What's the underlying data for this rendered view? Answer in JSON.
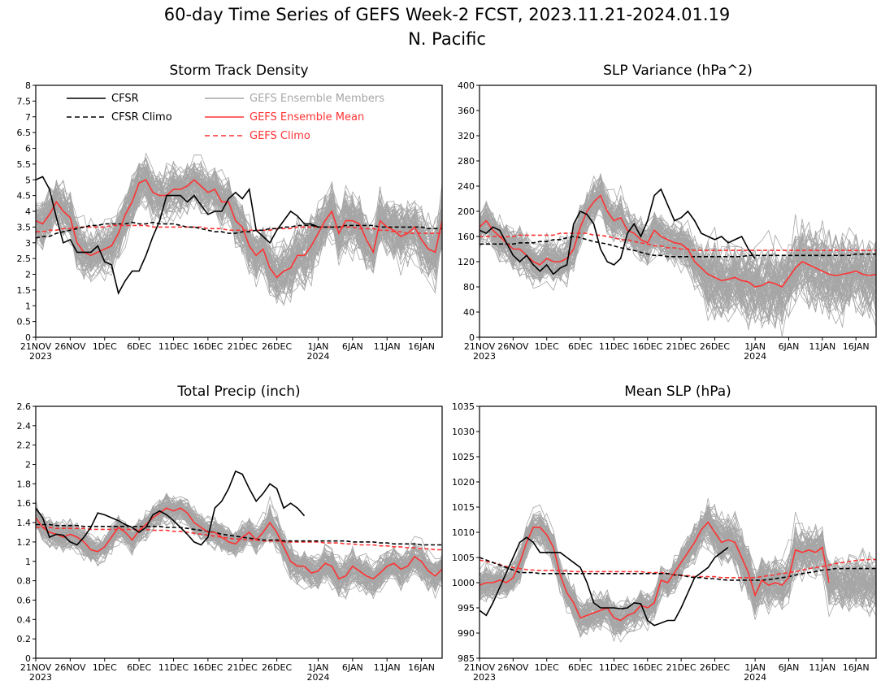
{
  "figure": {
    "title": "60-day Time Series of GEFS Week-2 FCST, 2023.11.21-2024.01.19",
    "subtitle": "N. Pacific"
  },
  "legend": {
    "cfsr": "CFSR",
    "cfsr_climo": "CFSR Climo",
    "members": "GEFS Ensemble Members",
    "mean": "GEFS Ensemble Mean",
    "gefs_climo": "GEFS Climo"
  },
  "colors": {
    "cfsr": "#000000",
    "members": "#a6a6a6",
    "mean": "#ff3333",
    "gefs_climo": "#ff3333"
  },
  "x_ticks": [
    "21NOV",
    "26NOV",
    "1DEC",
    "6DEC",
    "11DEC",
    "16DEC",
    "21DEC",
    "26DEC",
    "1JAN",
    "6JAN",
    "11JAN",
    "16JAN"
  ],
  "year_labels": [
    "2023",
    "2024"
  ],
  "chart_data": [
    {
      "type": "line",
      "title": "Storm Track Density",
      "x_start": "2023-11-21",
      "days": 60,
      "ylim": [
        0,
        8
      ],
      "yticks": [
        "0",
        "0.5",
        "1",
        "1.5",
        "2",
        "2.5",
        "3",
        "3.5",
        "4",
        "4.5",
        "5",
        "5.5",
        "6",
        "6.5",
        "7",
        "7.5",
        "8"
      ],
      "members_spread": [
        1.4,
        1.7
      ],
      "series": [
        {
          "name": "CFSR",
          "values": [
            5.0,
            5.1,
            4.7,
            3.8,
            3.0,
            3.1,
            2.7,
            2.7,
            2.7,
            2.9,
            2.4,
            2.3,
            1.4,
            1.8,
            2.1,
            2.1,
            2.6,
            3.2,
            3.7,
            4.5,
            4.5,
            4.5,
            4.3,
            4.5,
            4.2,
            3.9,
            4.0,
            4.0,
            4.4,
            4.6,
            4.4,
            4.7,
            3.4,
            3.2,
            3.0,
            3.4,
            3.7,
            4.0,
            3.85,
            3.6,
            3.6,
            3.5
          ]
        },
        {
          "name": "CFSR Climo",
          "values": [
            3.15,
            3.2,
            3.2,
            3.3,
            3.35,
            3.4,
            3.45,
            3.5,
            3.55,
            3.55,
            3.6,
            3.6,
            3.6,
            3.6,
            3.65,
            3.6,
            3.6,
            3.65,
            3.6,
            3.6,
            3.6,
            3.55,
            3.5,
            3.5,
            3.45,
            3.4,
            3.35,
            3.35,
            3.3,
            3.3,
            3.35,
            3.35,
            3.4,
            3.4,
            3.45,
            3.45,
            3.5,
            3.5,
            3.55,
            3.55,
            3.55,
            3.5,
            3.5,
            3.5,
            3.5,
            3.55,
            3.55,
            3.55,
            3.55,
            3.55,
            3.5,
            3.5,
            3.5,
            3.5,
            3.5,
            3.5,
            3.5,
            3.45,
            3.45,
            3.45
          ]
        },
        {
          "name": "GEFS Ensemble Mean",
          "values": [
            3.7,
            3.6,
            3.9,
            4.3,
            4.0,
            3.8,
            3.0,
            2.7,
            2.6,
            2.7,
            2.8,
            2.9,
            3.3,
            3.9,
            4.3,
            4.9,
            5.0,
            4.6,
            4.5,
            4.5,
            4.7,
            4.7,
            4.8,
            5.0,
            4.8,
            4.6,
            4.7,
            4.3,
            4.3,
            3.7,
            3.5,
            2.9,
            2.6,
            2.8,
            2.2,
            1.9,
            2.1,
            2.2,
            2.6,
            2.6,
            2.9,
            3.3,
            3.7,
            4.0,
            3.3,
            3.7,
            3.7,
            3.6,
            3.1,
            2.7,
            3.7,
            3.5,
            3.4,
            3.2,
            3.3,
            3.5,
            3.1,
            2.8,
            2.7,
            3.7
          ]
        },
        {
          "name": "GEFS Climo",
          "values": [
            3.35,
            3.35,
            3.4,
            3.4,
            3.45,
            3.45,
            3.5,
            3.5,
            3.5,
            3.5,
            3.5,
            3.55,
            3.55,
            3.55,
            3.55,
            3.55,
            3.55,
            3.5,
            3.5,
            3.5,
            3.5,
            3.5,
            3.5,
            3.5,
            3.5,
            3.45,
            3.45,
            3.45,
            3.4,
            3.4,
            3.4,
            3.4,
            3.4,
            3.4,
            3.4,
            3.45,
            3.45,
            3.45,
            3.5,
            3.5,
            3.5,
            3.5,
            3.5,
            3.5,
            3.5,
            3.5,
            3.5,
            3.45,
            3.45,
            3.45,
            3.4,
            3.4,
            3.35,
            3.35,
            3.3,
            3.3,
            3.3,
            3.3,
            3.3,
            3.3
          ]
        }
      ]
    },
    {
      "type": "line",
      "title": "SLP Variance (hPa^2)",
      "x_start": "2023-11-21",
      "days": 60,
      "ylim": [
        0,
        400
      ],
      "yticks": [
        "0",
        "40",
        "80",
        "120",
        "160",
        "200",
        "240",
        "280",
        "320",
        "360",
        "400"
      ],
      "members_spread": [
        60,
        110
      ],
      "series": [
        {
          "name": "CFSR",
          "values": [
            170,
            165,
            175,
            170,
            150,
            130,
            120,
            130,
            115,
            105,
            115,
            100,
            110,
            115,
            180,
            200,
            195,
            180,
            140,
            120,
            115,
            125,
            165,
            180,
            160,
            185,
            225,
            235,
            210,
            185,
            190,
            200,
            185,
            165,
            160,
            155,
            160,
            150,
            155,
            160,
            140,
            125
          ]
        },
        {
          "name": "CFSR Climo",
          "values": [
            148,
            148,
            148,
            148,
            148,
            148,
            150,
            150,
            150,
            152,
            152,
            155,
            155,
            158,
            160,
            158,
            155,
            152,
            150,
            148,
            145,
            142,
            140,
            138,
            135,
            132,
            130,
            130,
            128,
            128,
            128,
            128,
            128,
            128,
            128,
            128,
            128,
            128,
            128,
            128,
            130,
            130,
            130,
            130,
            130,
            130,
            130,
            130,
            130,
            130,
            130,
            130,
            130,
            130,
            130,
            130,
            132,
            132,
            132,
            132
          ]
        },
        {
          "name": "GEFS Ensemble Mean",
          "values": [
            175,
            185,
            170,
            160,
            150,
            140,
            140,
            130,
            120,
            115,
            125,
            120,
            120,
            125,
            140,
            175,
            200,
            215,
            225,
            200,
            185,
            190,
            170,
            165,
            155,
            150,
            170,
            160,
            155,
            150,
            148,
            140,
            120,
            110,
            100,
            95,
            90,
            92,
            95,
            90,
            88,
            80,
            82,
            88,
            85,
            80,
            95,
            110,
            120,
            115,
            110,
            105,
            100,
            98,
            100,
            102,
            105,
            100,
            98,
            100
          ]
        },
        {
          "name": "GEFS Climo",
          "values": [
            160,
            160,
            160,
            160,
            160,
            160,
            162,
            162,
            162,
            162,
            162,
            162,
            165,
            165,
            165,
            165,
            165,
            162,
            162,
            160,
            158,
            155,
            155,
            152,
            150,
            148,
            145,
            145,
            142,
            142,
            140,
            140,
            138,
            138,
            138,
            138,
            138,
            138,
            138,
            138,
            138,
            138,
            138,
            138,
            138,
            138,
            138,
            138,
            138,
            138,
            138,
            138,
            138,
            138,
            138,
            138,
            138,
            138,
            138,
            138
          ]
        }
      ]
    },
    {
      "type": "line",
      "title": "Total Precip (inch)",
      "x_start": "2023-11-21",
      "days": 60,
      "ylim": [
        0,
        2.6
      ],
      "yticks": [
        "0",
        "0.2",
        "0.4",
        "0.6",
        "0.8",
        "1",
        "1.2",
        "1.4",
        "1.6",
        "1.8",
        "2",
        "2.2",
        "2.4",
        "2.6"
      ],
      "members_spread": [
        0.25,
        0.32
      ],
      "series": [
        {
          "name": "CFSR",
          "values": [
            1.55,
            1.45,
            1.25,
            1.28,
            1.27,
            1.2,
            1.17,
            1.25,
            1.35,
            1.5,
            1.48,
            1.45,
            1.42,
            1.38,
            1.35,
            1.3,
            1.35,
            1.48,
            1.52,
            1.48,
            1.42,
            1.35,
            1.28,
            1.2,
            1.17,
            1.25,
            1.55,
            1.62,
            1.75,
            1.93,
            1.9,
            1.75,
            1.62,
            1.7,
            1.8,
            1.75,
            1.55,
            1.6,
            1.55,
            1.47
          ]
        },
        {
          "name": "CFSR Climo",
          "values": [
            1.38,
            1.38,
            1.38,
            1.37,
            1.37,
            1.37,
            1.37,
            1.36,
            1.36,
            1.36,
            1.36,
            1.36,
            1.36,
            1.36,
            1.36,
            1.36,
            1.36,
            1.36,
            1.36,
            1.35,
            1.35,
            1.35,
            1.34,
            1.33,
            1.32,
            1.31,
            1.3,
            1.28,
            1.27,
            1.26,
            1.25,
            1.24,
            1.23,
            1.22,
            1.22,
            1.22,
            1.21,
            1.21,
            1.21,
            1.21,
            1.21,
            1.21,
            1.21,
            1.21,
            1.21,
            1.21,
            1.2,
            1.2,
            1.2,
            1.2,
            1.19,
            1.19,
            1.18,
            1.18,
            1.18,
            1.18,
            1.17,
            1.17,
            1.17,
            1.17
          ]
        },
        {
          "name": "GEFS Ensemble Mean",
          "values": [
            1.45,
            1.35,
            1.3,
            1.28,
            1.25,
            1.28,
            1.25,
            1.2,
            1.12,
            1.1,
            1.15,
            1.25,
            1.35,
            1.3,
            1.22,
            1.32,
            1.38,
            1.45,
            1.5,
            1.55,
            1.52,
            1.55,
            1.5,
            1.4,
            1.35,
            1.3,
            1.3,
            1.25,
            1.2,
            1.18,
            1.25,
            1.3,
            1.22,
            1.3,
            1.4,
            1.3,
            1.15,
            1.0,
            0.95,
            0.95,
            0.88,
            0.9,
            0.98,
            0.95,
            0.82,
            0.85,
            0.95,
            0.9,
            0.85,
            0.82,
            0.88,
            0.95,
            0.98,
            0.92,
            0.95,
            1.05,
            1.0,
            0.9,
            0.85,
            0.92
          ]
        },
        {
          "name": "GEFS Climo",
          "values": [
            1.35,
            1.35,
            1.35,
            1.34,
            1.34,
            1.34,
            1.34,
            1.34,
            1.33,
            1.33,
            1.33,
            1.33,
            1.33,
            1.33,
            1.33,
            1.33,
            1.33,
            1.32,
            1.32,
            1.32,
            1.31,
            1.31,
            1.3,
            1.29,
            1.28,
            1.27,
            1.26,
            1.25,
            1.24,
            1.23,
            1.23,
            1.22,
            1.22,
            1.21,
            1.21,
            1.21,
            1.2,
            1.2,
            1.2,
            1.2,
            1.2,
            1.2,
            1.19,
            1.19,
            1.19,
            1.18,
            1.18,
            1.17,
            1.17,
            1.17,
            1.16,
            1.16,
            1.15,
            1.15,
            1.14,
            1.14,
            1.13,
            1.13,
            1.12,
            1.12
          ]
        }
      ]
    },
    {
      "type": "line",
      "title": "Mean SLP (hPa)",
      "x_start": "2023-11-21",
      "days": 60,
      "ylim": [
        985,
        1035
      ],
      "yticks": [
        "985",
        "990",
        "995",
        "1000",
        "1005",
        "1010",
        "1015",
        "1020",
        "1025",
        "1030",
        "1035"
      ],
      "members_spread": [
        6,
        9
      ],
      "series": [
        {
          "name": "CFSR",
          "values": [
            994.5,
            993.5,
            996,
            999,
            1002,
            1005,
            1008,
            1009,
            1008,
            1006,
            1006,
            1006,
            1006,
            1005,
            1004,
            1003,
            1000,
            996,
            995,
            995,
            995,
            994.8,
            995,
            996,
            995.8,
            992.5,
            991.5,
            992,
            992.5,
            992.5,
            995,
            998,
            1001,
            1002,
            1003,
            1005,
            1006,
            1007
          ]
        },
        {
          "name": "CFSR Climo",
          "values": [
            1005,
            1004.5,
            1004,
            1003.5,
            1003,
            1002.5,
            1002,
            1002,
            1002,
            1001.8,
            1001.8,
            1001.8,
            1001.8,
            1001.8,
            1001.8,
            1001.8,
            1001.8,
            1001.8,
            1001.8,
            1001.8,
            1001.8,
            1001.8,
            1001.8,
            1001.8,
            1001.8,
            1001.8,
            1001.8,
            1001.8,
            1001.8,
            1001.5,
            1001.5,
            1001.2,
            1001,
            1001,
            1000.8,
            1000.8,
            1000.6,
            1000.5,
            1000.5,
            1000.5,
            1000.5,
            1000.5,
            1000.5,
            1000.6,
            1000.8,
            1001,
            1001.2,
            1001.5,
            1001.8,
            1002,
            1002.2,
            1002.5,
            1002.6,
            1002.8,
            1002.8,
            1002.8,
            1002.8,
            1002.8,
            1002.8,
            1002.8
          ]
        },
        {
          "name": "GEFS Ensemble Mean",
          "values": [
            999.5,
            1000,
            1000,
            1000.5,
            1000,
            1001,
            1004,
            1008,
            1011,
            1011,
            1009.5,
            1007,
            1001.5,
            998,
            996,
            993,
            993.5,
            994,
            994.5,
            995,
            993,
            992.5,
            993.5,
            994,
            995.5,
            995,
            996,
            1000.5,
            1000,
            1002,
            1004,
            1006,
            1008,
            1010.5,
            1012,
            1010,
            1008,
            1008.5,
            1008,
            1005,
            1002,
            997.5,
            1000.5,
            999.5,
            1000,
            999.5,
            1001,
            1006.5,
            1006,
            1006.5,
            1006,
            1007,
            1000
          ]
        },
        {
          "name": "GEFS Climo",
          "values": [
            1004.5,
            1004.2,
            1004,
            1003.6,
            1003.2,
            1003,
            1002.8,
            1002.6,
            1002.5,
            1002.4,
            1002.4,
            1002.4,
            1002.4,
            1002.3,
            1002.2,
            1002.2,
            1002.2,
            1002.2,
            1002.2,
            1002.2,
            1002.2,
            1002.2,
            1002.2,
            1002.2,
            1002.2,
            1002,
            1002,
            1002,
            1001.8,
            1001.6,
            1001.4,
            1001.4,
            1001.2,
            1001.2,
            1001.2,
            1001.2,
            1001,
            1001,
            1001,
            1001,
            1001,
            1001,
            1001.2,
            1001.4,
            1001.6,
            1001.8,
            1002,
            1002.2,
            1002.5,
            1002.8,
            1003,
            1003.2,
            1003.5,
            1003.8,
            1004,
            1004.2,
            1004.4,
            1004.5,
            1004.6,
            1004.6
          ]
        }
      ]
    }
  ]
}
